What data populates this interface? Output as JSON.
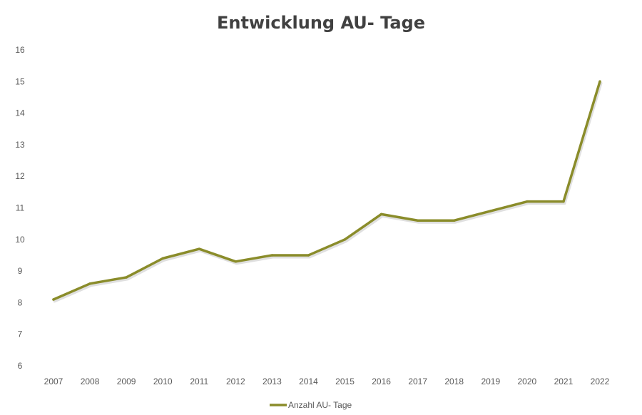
{
  "chart_data": {
    "type": "line",
    "title": "Entwicklung AU- Tage",
    "xlabel": "",
    "ylabel": "",
    "categories": [
      "2007",
      "2008",
      "2009",
      "2010",
      "2011",
      "2012",
      "2013",
      "2014",
      "2015",
      "2016",
      "2017",
      "2018",
      "2019",
      "2020",
      "2021",
      "2022"
    ],
    "y_ticks": [
      "6",
      "7",
      "8",
      "9",
      "10",
      "11",
      "12",
      "13",
      "14",
      "15",
      "16"
    ],
    "ylim": [
      6,
      16
    ],
    "grid": false,
    "legend_position": "bottom",
    "series": [
      {
        "name": "Anzahl AU- Tage",
        "color": "#8a8c2a",
        "values": [
          8.1,
          8.6,
          8.8,
          9.4,
          9.7,
          9.3,
          9.5,
          9.5,
          10.0,
          10.8,
          10.6,
          10.6,
          10.9,
          11.2,
          11.2,
          15.0
        ]
      }
    ]
  }
}
